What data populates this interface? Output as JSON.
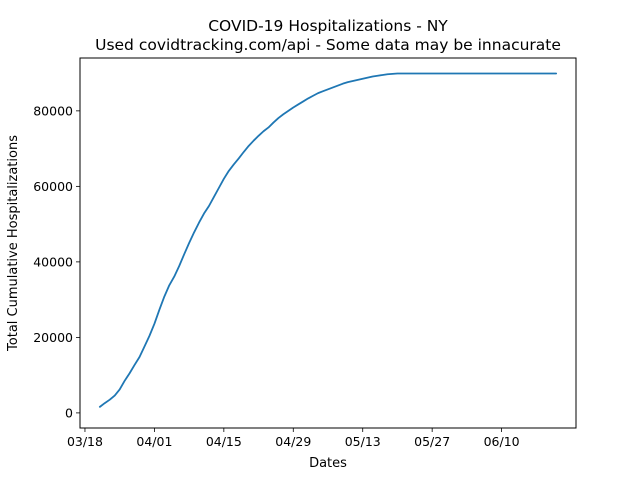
{
  "chart_data": {
    "type": "line",
    "title": "COVID-19 Hospitalizations - NY",
    "subtitle": "Used covidtracking.com/api - Some data may be innacurate",
    "xlabel": "Dates",
    "ylabel": "Total Cumulative Hospitalizations",
    "x_ticks": [
      "03/18",
      "04/01",
      "04/15",
      "04/29",
      "05/13",
      "05/27",
      "06/10"
    ],
    "y_ticks": [
      0,
      20000,
      40000,
      60000,
      80000
    ],
    "xlim": [
      "2020-03-17",
      "2020-06-25"
    ],
    "ylim": [
      -4000,
      94000
    ],
    "grid": false,
    "line_color": "#1f77b4",
    "series": [
      {
        "x": [
          "2020-03-21",
          "2020-03-22",
          "2020-03-23",
          "2020-03-24",
          "2020-03-25",
          "2020-03-26",
          "2020-03-27",
          "2020-03-28",
          "2020-03-29",
          "2020-03-30",
          "2020-03-31",
          "2020-04-01",
          "2020-04-02",
          "2020-04-03",
          "2020-04-04",
          "2020-04-05",
          "2020-04-06",
          "2020-04-07",
          "2020-04-08",
          "2020-04-09",
          "2020-04-10",
          "2020-04-11",
          "2020-04-12",
          "2020-04-13",
          "2020-04-14",
          "2020-04-15",
          "2020-04-16",
          "2020-04-17",
          "2020-04-18",
          "2020-04-19",
          "2020-04-20",
          "2020-04-21",
          "2020-04-22",
          "2020-04-23",
          "2020-04-24",
          "2020-04-25",
          "2020-04-26",
          "2020-04-27",
          "2020-04-28",
          "2020-04-29",
          "2020-04-30",
          "2020-05-01",
          "2020-05-02",
          "2020-05-03",
          "2020-05-04",
          "2020-05-05",
          "2020-05-06",
          "2020-05-07",
          "2020-05-08",
          "2020-05-09",
          "2020-05-10",
          "2020-05-11",
          "2020-05-12",
          "2020-05-13",
          "2020-05-14",
          "2020-05-15",
          "2020-05-16",
          "2020-05-17",
          "2020-05-18",
          "2020-05-19",
          "2020-05-20",
          "2020-05-21",
          "2020-05-22",
          "2020-05-23",
          "2020-05-24",
          "2020-05-25",
          "2020-05-26",
          "2020-05-27",
          "2020-05-28",
          "2020-05-29",
          "2020-05-30",
          "2020-05-31",
          "2020-06-01",
          "2020-06-02",
          "2020-06-03",
          "2020-06-04",
          "2020-06-05",
          "2020-06-21"
        ],
        "y": [
          1600,
          2600,
          3500,
          4600,
          6200,
          8500,
          10500,
          12700,
          14800,
          17600,
          20400,
          23600,
          27300,
          30800,
          33800,
          36100,
          38900,
          42000,
          45000,
          47800,
          50400,
          52800,
          54800,
          57200,
          59600,
          62000,
          64100,
          65800,
          67400,
          69100,
          70700,
          72100,
          73400,
          74600,
          75600,
          76900,
          78100,
          79100,
          80000,
          80900,
          81700,
          82500,
          83300,
          84000,
          84700,
          85200,
          85700,
          86200,
          86700,
          87200,
          87600,
          87900,
          88200,
          88500,
          88800,
          89100,
          89300,
          89500,
          89700,
          89800,
          89900,
          89900,
          89900,
          89900,
          89900,
          89900,
          89900,
          89900,
          89900,
          89900,
          89900,
          89900,
          89900,
          89900,
          89900,
          89900,
          89900,
          89900
        ]
      }
    ]
  }
}
